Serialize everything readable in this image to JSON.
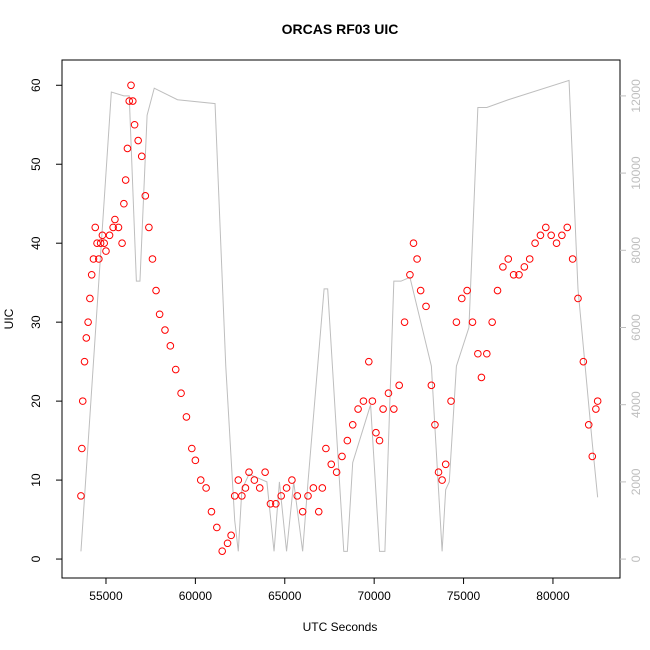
{
  "chart_data": {
    "type": "scatter",
    "title": "ORCAS RF03 UIC",
    "x_label": "UTC Seconds",
    "y_label": "UIC",
    "xlim": [
      52540,
      83750
    ],
    "ylim": [
      -2.4,
      63.2
    ],
    "y2lim": [
      -490,
      12930
    ],
    "xticks": [
      55000,
      60000,
      65000,
      70000,
      75000,
      80000
    ],
    "yticks": [
      0,
      10,
      20,
      30,
      40,
      50,
      60
    ],
    "y2ticks": [
      0,
      2000,
      4000,
      6000,
      8000,
      10000,
      12000
    ],
    "series": [
      {
        "type": "scatter",
        "color": "#ff0000",
        "x": [
          53600,
          53650,
          53700,
          53800,
          53900,
          54000,
          54100,
          54200,
          54300,
          54400,
          54500,
          54600,
          54700,
          54800,
          54900,
          55000,
          55200,
          55400,
          55500,
          55700,
          55900,
          56000,
          56100,
          56200,
          56300,
          56400,
          56500,
          56600,
          56800,
          57000,
          57200,
          57400,
          57600,
          57800,
          58000,
          58300,
          58600,
          58900,
          59200,
          59500,
          59800,
          60000,
          60300,
          60600,
          60900,
          61200,
          61500,
          61800,
          62000,
          62200,
          62400,
          62600,
          62800,
          63000,
          63300,
          63600,
          63900,
          64200,
          64500,
          64800,
          65100,
          65400,
          65700,
          66000,
          66300,
          66600,
          66900,
          67100,
          67300,
          67600,
          67900,
          68200,
          68500,
          68800,
          69100,
          69400,
          69700,
          69900,
          70100,
          70300,
          70500,
          70800,
          71100,
          71400,
          71700,
          72000,
          72200,
          72400,
          72600,
          72900,
          73200,
          73400,
          73600,
          73800,
          74000,
          74300,
          74600,
          74900,
          75200,
          75500,
          75800,
          76000,
          76300,
          76600,
          76900,
          77200,
          77500,
          77800,
          78100,
          78400,
          78700,
          79000,
          79300,
          79600,
          79900,
          80200,
          80500,
          80800,
          81100,
          81400,
          81700,
          82000,
          82200,
          82400,
          82500
        ],
        "values": [
          8,
          14,
          20,
          25,
          28,
          30,
          33,
          36,
          38,
          42,
          40,
          38,
          40,
          41,
          40,
          39,
          41,
          42,
          43,
          42,
          40,
          45,
          48,
          52,
          58,
          60,
          58,
          55,
          53,
          51,
          46,
          42,
          38,
          34,
          31,
          29,
          27,
          24,
          21,
          18,
          14,
          12.5,
          10,
          9,
          6,
          4,
          1,
          2,
          3,
          8,
          10,
          8,
          9,
          11,
          10,
          9,
          11,
          7,
          7,
          8,
          9,
          10,
          8,
          6,
          8,
          9,
          6,
          9,
          14,
          12,
          11,
          13,
          15,
          17,
          19,
          20,
          25,
          20,
          16,
          15,
          19,
          21,
          19,
          22,
          30,
          36,
          40,
          38,
          34,
          32,
          22,
          17,
          11,
          10,
          12,
          20,
          30,
          33,
          34,
          30,
          26,
          23,
          26,
          30,
          34,
          37,
          38,
          36,
          36,
          37,
          38,
          40,
          41,
          42,
          41,
          40,
          41,
          42,
          38,
          33,
          25,
          17,
          13,
          19,
          20
        ]
      },
      {
        "type": "line",
        "axis": "y2",
        "color": "#bebebe",
        "x": [
          53600,
          55300,
          56000,
          56300,
          56700,
          56900,
          57300,
          57700,
          59000,
          61100,
          61700,
          62200,
          62400,
          62600,
          63000,
          64000,
          64400,
          64700,
          65100,
          65500,
          66000,
          66300,
          67200,
          67400,
          68300,
          68500,
          68800,
          69800,
          70300,
          70600,
          71100,
          71500,
          72000,
          73200,
          73800,
          74000,
          74200,
          74600,
          75300,
          75800,
          76300,
          77500,
          80900,
          81400,
          82200,
          82500
        ],
        "values": [
          200,
          12100,
          12000,
          12000,
          7200,
          7200,
          11500,
          12200,
          11900,
          11800,
          5000,
          1000,
          200,
          1800,
          2200,
          2000,
          200,
          2000,
          200,
          2000,
          200,
          2000,
          7000,
          7000,
          200,
          200,
          2500,
          4000,
          200,
          200,
          7200,
          7200,
          7300,
          5000,
          200,
          1800,
          2000,
          5000,
          6000,
          11700,
          11700,
          11900,
          12400,
          7000,
          3000,
          1600
        ]
      }
    ]
  }
}
